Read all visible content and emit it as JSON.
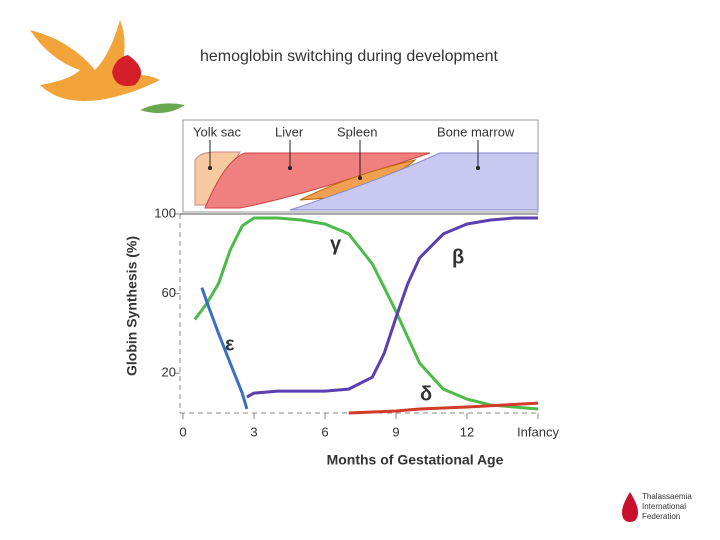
{
  "slide_title": "hemoglobin switching during development",
  "organ_panel": {
    "labels": [
      "Yolk sac",
      "Liver",
      "Spleen",
      "Bone marrow"
    ]
  },
  "footer_logo": [
    "Thalassaemia",
    "International",
    "Federation"
  ],
  "chart_data": {
    "type": "line",
    "x_label": "Months of Gestational Age",
    "y_label": "Globin Synthesis (%)",
    "xlim": [
      0,
      15
    ],
    "xticks": [
      0,
      3,
      6,
      9,
      12,
      {
        "value": 15,
        "label": "Infancy"
      }
    ],
    "ylim": [
      0,
      100
    ],
    "yticks": [
      20,
      60,
      100
    ],
    "series": [
      {
        "name": "γ",
        "color": "#4cbb4a",
        "x": [
          0.5,
          1,
          1.5,
          2,
          2.5,
          3,
          4,
          5,
          6,
          7,
          8,
          8.5,
          9,
          9.5,
          10,
          11,
          12,
          13,
          14,
          15
        ],
        "values": [
          47,
          55,
          65,
          82,
          94,
          98,
          98,
          97,
          95,
          90,
          75,
          63,
          51,
          38,
          25,
          12,
          7,
          4,
          3,
          2
        ]
      },
      {
        "name": "β",
        "color": "#5a3fb0",
        "x": [
          2.7,
          3,
          4,
          5,
          6,
          7,
          8,
          8.5,
          9,
          9.5,
          10,
          11,
          12,
          13,
          14,
          15
        ],
        "values": [
          8,
          10,
          11,
          11,
          11,
          12,
          18,
          30,
          48,
          65,
          78,
          90,
          95,
          97,
          98,
          98
        ]
      },
      {
        "name": "ε",
        "color": "#3a6fc4",
        "x": [
          0.8,
          1,
          1.5,
          2,
          2.5,
          2.7
        ],
        "values": [
          63,
          56,
          40,
          25,
          10,
          2
        ]
      },
      {
        "name": "δ",
        "color": "#d23a2a",
        "x": [
          7,
          9,
          10,
          12,
          15
        ],
        "values": [
          0,
          1,
          2,
          3,
          5
        ]
      }
    ]
  }
}
